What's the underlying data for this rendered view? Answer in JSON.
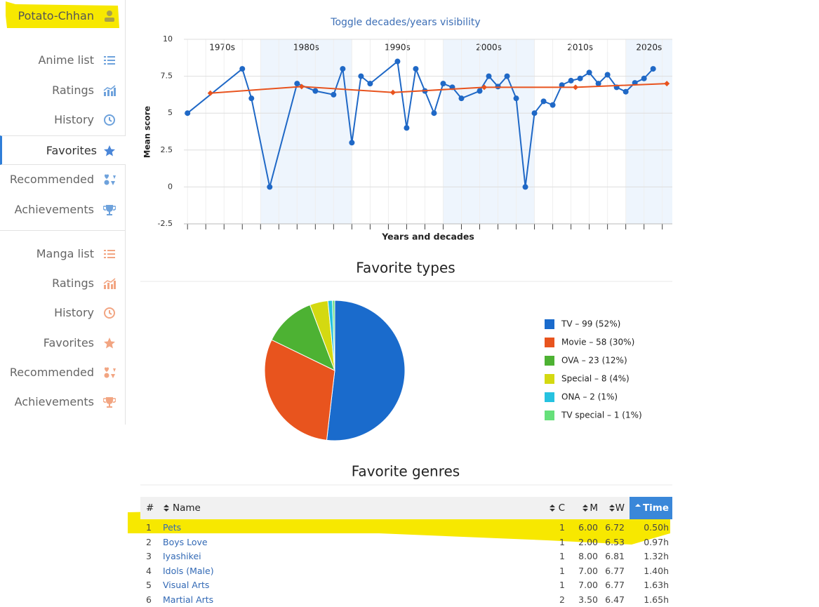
{
  "sidebar": {
    "user": "Potato-Chhan",
    "anime": [
      "Anime list",
      "Ratings",
      "History",
      "Favorites",
      "Recommended",
      "Achievements"
    ],
    "manga": [
      "Manga list",
      "Ratings",
      "History",
      "Favorites",
      "Recommended",
      "Achievements"
    ]
  },
  "chart_data": [
    {
      "type": "line",
      "title": "Toggle decades/years visibility",
      "y_label": "Mean score",
      "x_label": "Years and decades",
      "decades": [
        "1970s",
        "1980s",
        "1990s",
        "2000s",
        "2010s",
        "2020s"
      ],
      "xlim": [
        1971.6,
        2025.1
      ],
      "xticks": [
        1972,
        1974,
        1976,
        1978,
        1980,
        1982,
        1984,
        1986,
        1988,
        1990,
        1992,
        1994,
        1996,
        1998,
        2000,
        2002,
        2004,
        2006,
        2008,
        2010,
        2012,
        2014,
        2016,
        2018,
        2020,
        2022,
        2024
      ],
      "ylim": [
        -2.5,
        10
      ],
      "yticks": [
        -2.5,
        0,
        2.5,
        5,
        7.5,
        10
      ],
      "grid": true,
      "series": [
        {
          "color": "#1f68c6",
          "marker": "circle",
          "x": [
            1972,
            1978,
            1979,
            1981,
            1984,
            1986,
            1988,
            1989,
            1990,
            1991,
            1992,
            1995,
            1996,
            1997,
            1998,
            1999,
            2000,
            2001,
            2002,
            2004,
            2005,
            2006,
            2007,
            2008,
            2009,
            2010,
            2011,
            2012,
            2013,
            2014,
            2015,
            2016,
            2017,
            2018,
            2019,
            2020,
            2021,
            2022,
            2023
          ],
          "values": [
            5,
            8,
            6,
            0,
            7,
            6.5,
            6.25,
            8,
            3,
            7.5,
            7,
            8.5,
            4,
            8,
            6.5,
            5,
            7,
            6.75,
            6,
            6.5,
            7.5,
            6.8,
            7.5,
            6,
            0,
            5,
            5.8,
            5.55,
            6.9,
            7.2,
            7.35,
            7.75,
            7,
            7.6,
            6.75,
            6.45,
            7.05,
            7.35,
            8
          ]
        },
        {
          "color": "#e8531e",
          "marker": "diamond",
          "x": [
            1974.5,
            1984.5,
            1994.5,
            2004.5,
            2014.5,
            2024.5
          ],
          "values": [
            6.35,
            6.8,
            6.4,
            6.75,
            6.75,
            7.0
          ]
        }
      ]
    },
    {
      "type": "pie",
      "title": "Favorite types",
      "categories": [
        "TV",
        "Movie",
        "OVA",
        "Special",
        "ONA",
        "TV special"
      ],
      "values": [
        99,
        58,
        23,
        8,
        2,
        1
      ],
      "value_labels": [
        "TV – 99 (52%)",
        "Movie – 58 (30%)",
        "OVA – 23 (12%)",
        "Special – 8 (4%)",
        "ONA – 2 (1%)",
        "TV special – 1 (1%)"
      ],
      "colors": [
        "#1a6bcc",
        "#e8541e",
        "#4db233",
        "#d4d911",
        "#26c2e0",
        "#66e07a"
      ]
    }
  ],
  "genres": {
    "title": "Favorite genres",
    "columns": [
      "#",
      "Name",
      "C",
      "M",
      "W",
      "Time"
    ],
    "rows": [
      [
        "1",
        "Pets",
        "1",
        "6.00",
        "6.72",
        "0.50h"
      ],
      [
        "2",
        "Boys Love",
        "1",
        "2.00",
        "6.53",
        "0.97h"
      ],
      [
        "3",
        "Iyashikei",
        "1",
        "8.00",
        "6.81",
        "1.32h"
      ],
      [
        "4",
        "Idols (Male)",
        "1",
        "7.00",
        "6.77",
        "1.40h"
      ],
      [
        "5",
        "Visual Arts",
        "1",
        "7.00",
        "6.77",
        "1.63h"
      ],
      [
        "6",
        "Martial Arts",
        "2",
        "3.50",
        "6.47",
        "1.65h"
      ]
    ]
  }
}
